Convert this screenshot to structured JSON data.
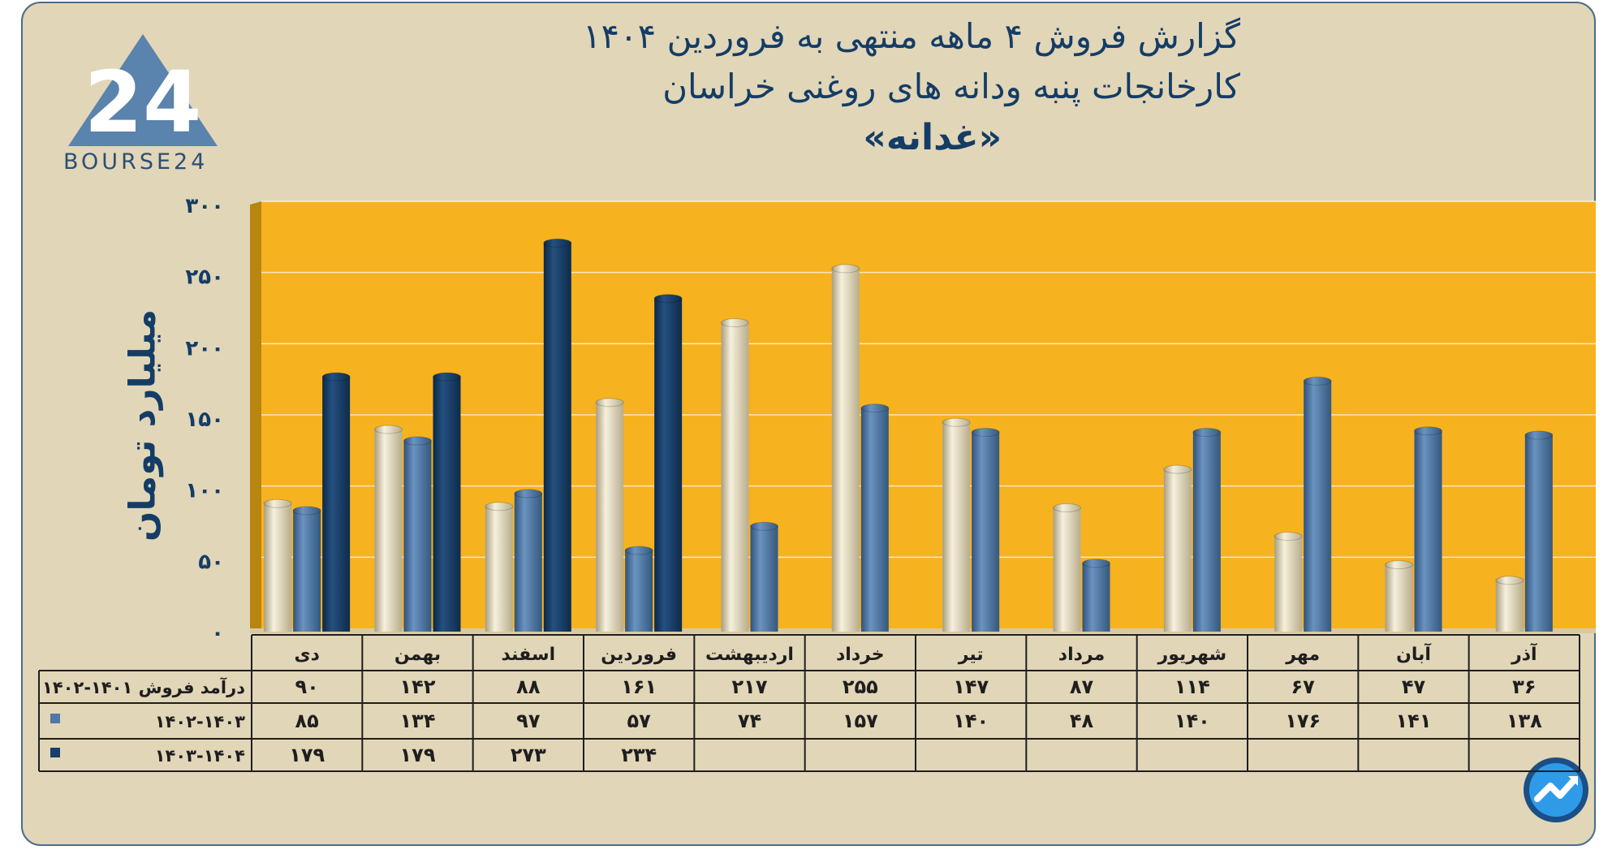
{
  "header": {
    "title_line1": "گزارش  فروش ۴ ماهه منتهی به فروردین ۱۴۰۴",
    "title_line2": "کارخانجات پنبه ودانه های روغنی خراسان",
    "title_line3": "«غدانه»"
  },
  "logo": {
    "text": "BOURSE24",
    "mark": "24"
  },
  "colors": {
    "plot_bg": "#f7b21f",
    "frame_bg": "#e2d6b8",
    "series_1": "#e9e0c2",
    "series_2": "#4f78a6",
    "series_3": "#163f6b",
    "text": "#143d66"
  },
  "chart_data": {
    "type": "bar",
    "title": "گزارش  فروش ۴ ماهه منتهی به فروردین ۱۴۰۴",
    "ylabel": "میلیارد تومان",
    "ylim": [
      0,
      300
    ],
    "yticks": [
      0,
      50,
      100,
      150,
      200,
      250,
      300
    ],
    "ytick_labels": [
      "۰",
      "۵۰",
      "۱۰۰",
      "۱۵۰",
      "۲۰۰",
      "۲۵۰",
      "۳۰۰"
    ],
    "grid": true,
    "categories": [
      "دی",
      "بهمن",
      "اسفند",
      "فروردین",
      "اردیبهشت",
      "خرداد",
      "تیر",
      "مرداد",
      "شهریور",
      "مهر",
      "آبان",
      "آذر"
    ],
    "series": [
      {
        "name": "درآمد فروش ۱۴۰۱-۱۴۰۲",
        "values": [
          90,
          142,
          88,
          161,
          217,
          255,
          147,
          87,
          114,
          67,
          47,
          36
        ],
        "labels": [
          "۹۰",
          "۱۴۲",
          "۸۸",
          "۱۶۱",
          "۲۱۷",
          "۲۵۵",
          "۱۴۷",
          "۸۷",
          "۱۱۴",
          "۶۷",
          "۴۷",
          "۳۶"
        ]
      },
      {
        "name": "۱۴۰۲-۱۴۰۳",
        "values": [
          85,
          134,
          97,
          57,
          74,
          157,
          140,
          48,
          140,
          176,
          141,
          138
        ],
        "labels": [
          "۸۵",
          "۱۳۴",
          "۹۷",
          "۵۷",
          "۷۴",
          "۱۵۷",
          "۱۴۰",
          "۴۸",
          "۱۴۰",
          "۱۷۶",
          "۱۴۱",
          "۱۳۸"
        ]
      },
      {
        "name": "۱۴۰۳-۱۴۰۴",
        "values": [
          179,
          179,
          273,
          234,
          null,
          null,
          null,
          null,
          null,
          null,
          null,
          null
        ],
        "labels": [
          "۱۷۹",
          "۱۷۹",
          "۲۷۳",
          "۲۳۴",
          "",
          "",
          "",
          "",
          "",
          "",
          "",
          ""
        ]
      }
    ]
  }
}
